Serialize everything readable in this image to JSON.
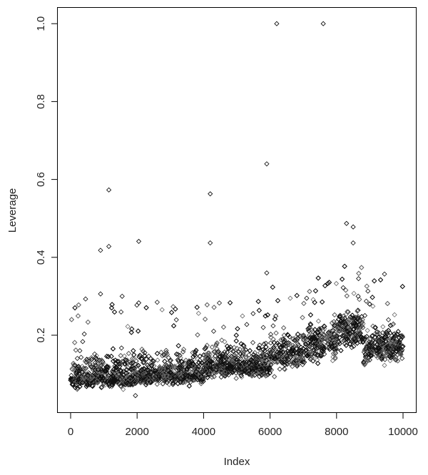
{
  "chart_data": {
    "type": "scatter",
    "title": "",
    "xlabel": "Index",
    "ylabel": "Leverage",
    "xlim": [
      0,
      10000
    ],
    "ylim": [
      0.04,
      1.0
    ],
    "grid": false,
    "legend": "none",
    "marker": "open-diamond",
    "marker_color": "#000000",
    "x_ticks": [
      "0",
      "2000",
      "4000",
      "6000",
      "8000",
      "10000"
    ],
    "y_ticks": [
      "0.2",
      "0.4",
      "0.6",
      "0.8",
      "1.0"
    ],
    "n_points": 10000,
    "bulk_bands": [
      {
        "x_from": 1,
        "x_to": 2000,
        "typical_low": 0.05,
        "center": 0.09,
        "typical_high": 0.18
      },
      {
        "x_from": 2000,
        "x_to": 4000,
        "typical_low": 0.06,
        "center": 0.1,
        "typical_high": 0.19
      },
      {
        "x_from": 4000,
        "x_to": 6000,
        "typical_low": 0.07,
        "center": 0.12,
        "typical_high": 0.21
      },
      {
        "x_from": 6000,
        "x_to": 7000,
        "typical_low": 0.08,
        "center": 0.15,
        "typical_high": 0.23
      },
      {
        "x_from": 7000,
        "x_to": 8000,
        "typical_low": 0.09,
        "center": 0.18,
        "typical_high": 0.26
      },
      {
        "x_from": 8000,
        "x_to": 8800,
        "typical_low": 0.13,
        "center": 0.22,
        "typical_high": 0.28
      },
      {
        "x_from": 8800,
        "x_to": 9050,
        "typical_low": 0.1,
        "center": 0.16,
        "typical_high": 0.24
      },
      {
        "x_from": 9050,
        "x_to": 10000,
        "typical_low": 0.1,
        "center": 0.17,
        "typical_high": 0.26
      }
    ],
    "notable_points": [
      {
        "x": 6200,
        "y": 1.0
      },
      {
        "x": 7600,
        "y": 1.0
      },
      {
        "x": 5900,
        "y": 0.64
      },
      {
        "x": 1150,
        "y": 0.573
      },
      {
        "x": 4200,
        "y": 0.563
      },
      {
        "x": 8300,
        "y": 0.487
      },
      {
        "x": 8500,
        "y": 0.478
      },
      {
        "x": 2050,
        "y": 0.441
      },
      {
        "x": 4200,
        "y": 0.437
      },
      {
        "x": 8500,
        "y": 0.437
      },
      {
        "x": 1150,
        "y": 0.428
      },
      {
        "x": 900,
        "y": 0.418
      },
      {
        "x": 5900,
        "y": 0.36
      },
      {
        "x": 8200,
        "y": 0.322
      },
      {
        "x": 900,
        "y": 0.306
      },
      {
        "x": 1550,
        "y": 0.3
      },
      {
        "x": 450,
        "y": 0.293
      },
      {
        "x": 2050,
        "y": 0.283
      },
      {
        "x": 7100,
        "y": 0.295
      },
      {
        "x": 8650,
        "y": 0.3
      },
      {
        "x": 1950,
        "y": 0.045
      }
    ]
  }
}
